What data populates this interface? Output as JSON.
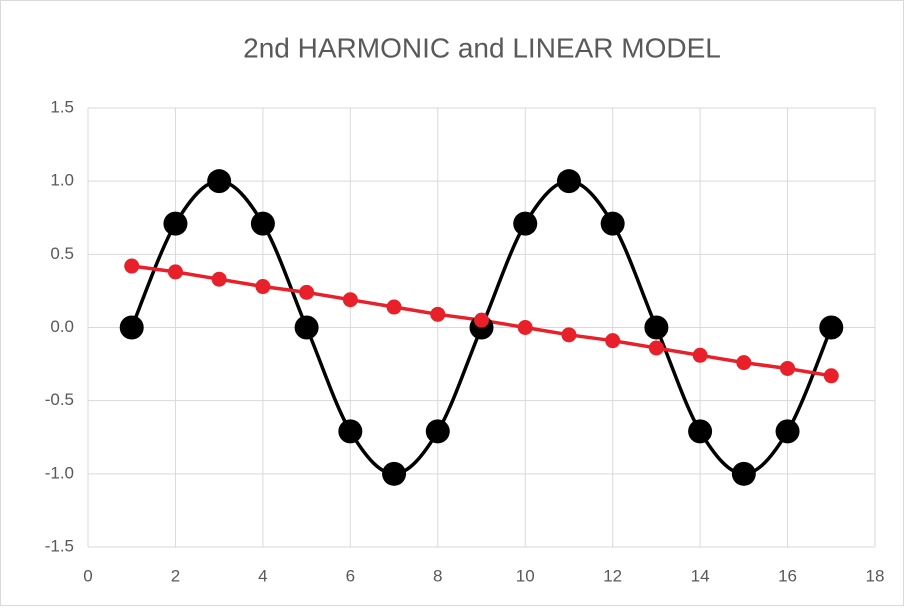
{
  "chart_data": {
    "type": "scatter",
    "title": "2nd HARMONIC and LINEAR MODEL",
    "x": [
      1,
      2,
      3,
      4,
      5,
      6,
      7,
      8,
      9,
      10,
      11,
      12,
      13,
      14,
      15,
      16,
      17
    ],
    "series": [
      {
        "color": "#000000",
        "smooth": true,
        "values": [
          0,
          0.71,
          1,
          0.71,
          0,
          -0.71,
          -1,
          -0.71,
          0,
          0.71,
          1,
          0.71,
          0,
          -0.71,
          -1,
          -0.71,
          0
        ]
      },
      {
        "color": "#e8202a",
        "smooth": false,
        "values": [
          0.42,
          0.38,
          0.33,
          0.28,
          0.24,
          0.19,
          0.14,
          0.09,
          0.05,
          0.0,
          -0.05,
          -0.09,
          -0.14,
          -0.19,
          -0.24,
          -0.28,
          -0.33
        ]
      }
    ],
    "xlim": [
      0,
      18
    ],
    "xticks": [
      0,
      2,
      4,
      6,
      8,
      10,
      12,
      14,
      16,
      18
    ],
    "ylim": [
      -1.5,
      1.5
    ],
    "yticks": [
      {
        "value": -1.5,
        "label": "-1.5"
      },
      {
        "value": -1,
        "label": "-1.0"
      },
      {
        "value": -0.5,
        "label": "-0.5"
      },
      {
        "value": 0,
        "label": "0.0"
      },
      {
        "value": 0.5,
        "label": "0.5"
      },
      {
        "value": 1,
        "label": "1.0"
      },
      {
        "value": 1.5,
        "label": "1.5"
      }
    ],
    "grid": true
  }
}
